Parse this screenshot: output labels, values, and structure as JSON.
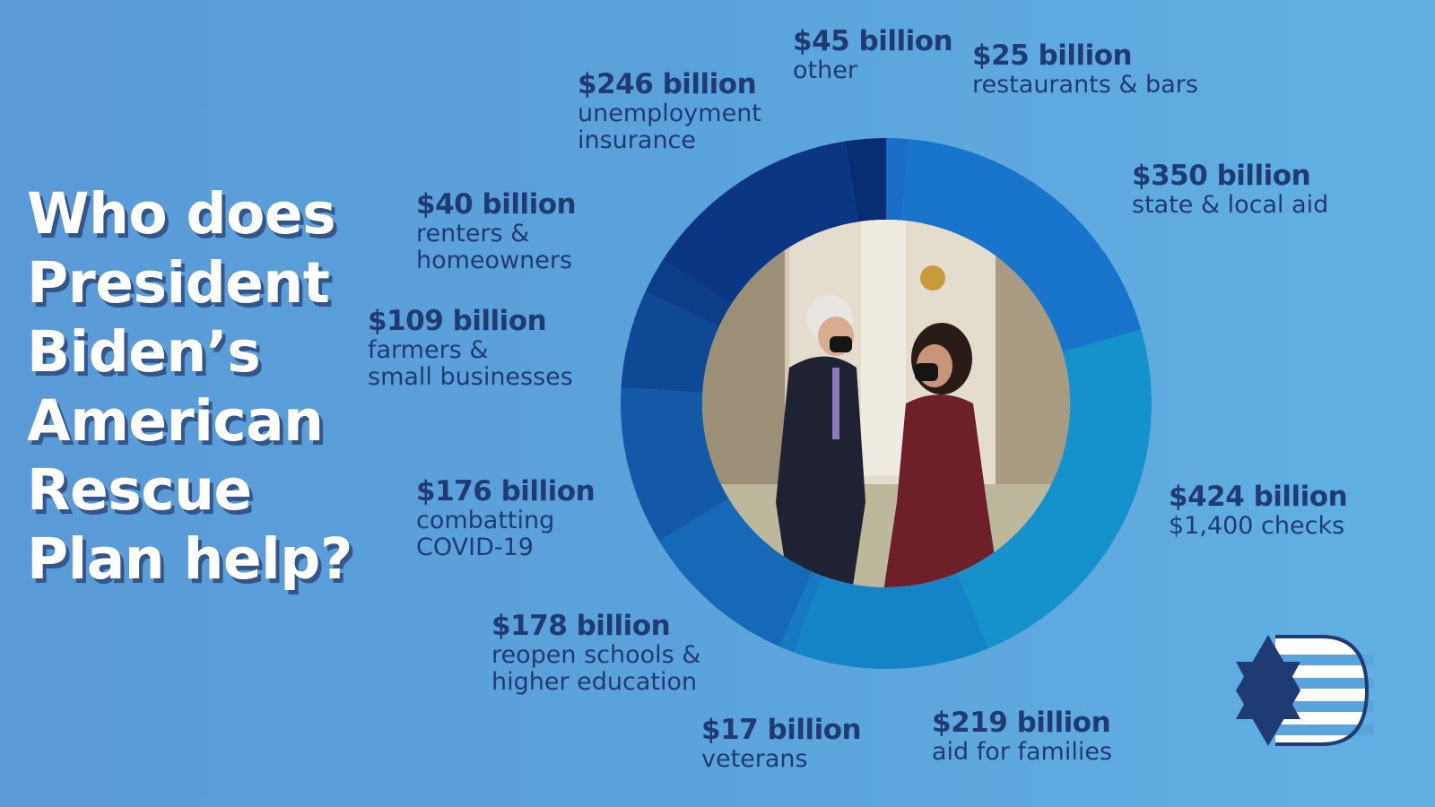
{
  "headline": "Who does President Biden’s American Rescue Plan help?",
  "chart_data": {
    "type": "pie",
    "title": "",
    "unit": "billion USD",
    "slices": [
      {
        "amount_label": "$25 billion",
        "desc": "restaurants & bars",
        "value": 25,
        "color": "#1b6dc7"
      },
      {
        "amount_label": "$350 billion",
        "desc": "state & local aid",
        "value": 350,
        "color": "#1975cb"
      },
      {
        "amount_label": "$424 billion",
        "desc": "$1,400 checks",
        "value": 424,
        "color": "#1592cc"
      },
      {
        "amount_label": "$219 billion",
        "desc": "aid for families",
        "value": 219,
        "color": "#1584c7"
      },
      {
        "amount_label": "$17 billion",
        "desc": "veterans",
        "value": 17,
        "color": "#1679c2"
      },
      {
        "amount_label": "$178 billion",
        "desc": "reopen schools &\nhigher education",
        "value": 178,
        "color": "#1569b6"
      },
      {
        "amount_label": "$176 billion",
        "desc": "combatting\nCOVID-19",
        "value": 176,
        "color": "#1459a8"
      },
      {
        "amount_label": "$109 billion",
        "desc": "farmers &\nsmall businesses",
        "value": 109,
        "color": "#0f4996"
      },
      {
        "amount_label": "$40 billion",
        "desc": "renters &\nhomeowners",
        "value": 40,
        "color": "#0b3d88"
      },
      {
        "amount_label": "$246 billion",
        "desc": "unemployment\ninsurance",
        "value": 246,
        "color": "#0a3683"
      },
      {
        "amount_label": "$45 billion",
        "desc": "other",
        "value": 45,
        "color": "#082d72"
      }
    ]
  },
  "center_image": {
    "alt": "Photo of Joe Biden and Kamala Harris in a White House room",
    "colors": {
      "wall": "#ddd2bf",
      "carpet": "#b9b395",
      "suit": "#1d1f2e",
      "dress": "#6d1f2a",
      "skin": "#d8a888",
      "hair_white": "#e9e6e2",
      "hair_dark": "#2a1b16"
    }
  },
  "logo": {
    "name": "star-stripes-logo",
    "colors": {
      "star": "#1f3b73",
      "stripes": "#ffffff",
      "accent": "#1f3b73"
    }
  }
}
